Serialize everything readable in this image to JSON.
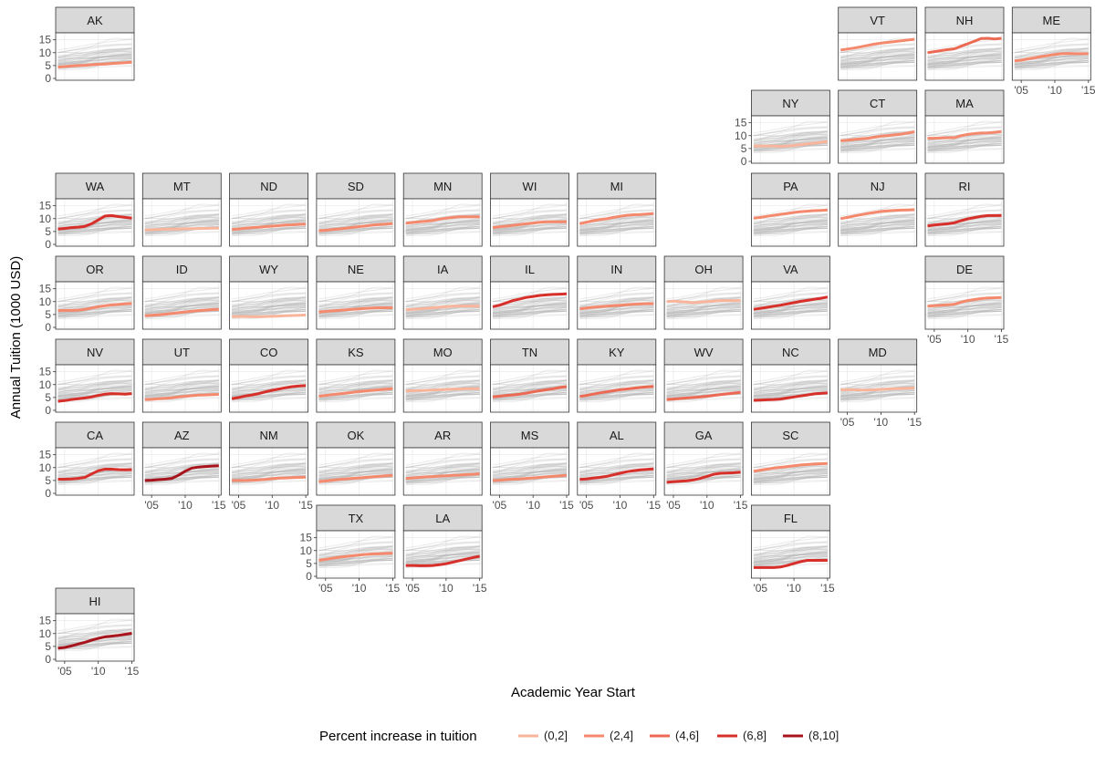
{
  "chart_data": {
    "type": "line",
    "layout": "small-multiples geofacet grid of US states",
    "xlabel": "Academic Year Start",
    "ylabel": "Annual Tuition (1000 USD)",
    "x_ticks": [
      "'05",
      "'10",
      "'15"
    ],
    "x": [
      2004,
      2005,
      2006,
      2007,
      2008,
      2009,
      2010,
      2011,
      2012,
      2013,
      2014,
      2015
    ],
    "xlim": [
      2004,
      2015
    ],
    "y_ticks": [
      0,
      5,
      10,
      15
    ],
    "ylim": [
      0,
      17
    ],
    "grid": true,
    "background_lines": "all other states drawn in light grey in every panel",
    "legend": {
      "title": "Percent increase in tuition",
      "position": "bottom",
      "categories": [
        {
          "label": "(0,2]",
          "color": "#f8b59c"
        },
        {
          "label": "(2,4]",
          "color": "#f4896e"
        },
        {
          "label": "(4,6]",
          "color": "#ec6a53"
        },
        {
          "label": "(6,8]",
          "color": "#d7302b"
        },
        {
          "label": "(8,10]",
          "color": "#a8141c"
        }
      ]
    },
    "series": [
      {
        "state": "AK",
        "row": 0,
        "col": 0,
        "cat": 1,
        "values": [
          4.4,
          4.6,
          4.8,
          5.0,
          5.1,
          5.3,
          5.5,
          5.6,
          5.8,
          5.9,
          6.1,
          6.3
        ]
      },
      {
        "state": "VT",
        "row": 0,
        "col": 9,
        "cat": 1,
        "values": [
          11.0,
          11.4,
          11.8,
          12.3,
          12.8,
          13.3,
          13.7,
          14.0,
          14.3,
          14.6,
          14.9,
          15.2
        ]
      },
      {
        "state": "NH",
        "row": 0,
        "col": 10,
        "cat": 2,
        "values": [
          10.0,
          10.4,
          10.8,
          11.2,
          11.5,
          12.5,
          13.5,
          14.5,
          15.5,
          15.6,
          15.3,
          15.6
        ]
      },
      {
        "state": "ME",
        "row": 0,
        "col": 11,
        "cat": 1,
        "values": [
          6.8,
          7.1,
          7.6,
          8.0,
          8.5,
          8.9,
          9.3,
          9.6,
          9.7,
          9.6,
          9.6,
          9.6
        ]
      },
      {
        "state": "NY",
        "row": 1,
        "col": 8,
        "cat": 0,
        "values": [
          6.0,
          6.0,
          6.0,
          6.0,
          5.8,
          6.0,
          6.2,
          6.5,
          6.8,
          7.1,
          7.4,
          7.7
        ]
      },
      {
        "state": "CT",
        "row": 1,
        "col": 9,
        "cat": 1,
        "values": [
          8.0,
          8.2,
          8.5,
          8.8,
          9.0,
          9.4,
          9.8,
          10.0,
          10.3,
          10.6,
          11.0,
          11.5
        ]
      },
      {
        "state": "MA",
        "row": 1,
        "col": 10,
        "cat": 1,
        "values": [
          9.0,
          9.0,
          9.1,
          9.2,
          9.2,
          10.0,
          10.5,
          10.8,
          11.0,
          11.1,
          11.3,
          11.6
        ]
      },
      {
        "state": "WA",
        "row": 2,
        "col": 0,
        "cat": 3,
        "values": [
          6.0,
          6.2,
          6.5,
          6.7,
          7.0,
          8.0,
          9.5,
          11.0,
          11.2,
          10.8,
          10.5,
          10.2
        ]
      },
      {
        "state": "MT",
        "row": 2,
        "col": 1,
        "cat": 0,
        "values": [
          5.6,
          5.7,
          5.8,
          5.9,
          5.9,
          6.0,
          6.1,
          6.1,
          6.2,
          6.2,
          6.3,
          6.3
        ]
      },
      {
        "state": "ND",
        "row": 2,
        "col": 2,
        "cat": 1,
        "values": [
          5.8,
          6.0,
          6.3,
          6.5,
          6.7,
          6.9,
          7.1,
          7.3,
          7.5,
          7.6,
          7.8,
          7.9
        ]
      },
      {
        "state": "SD",
        "row": 2,
        "col": 3,
        "cat": 1,
        "values": [
          5.3,
          5.5,
          5.8,
          6.0,
          6.3,
          6.6,
          6.9,
          7.2,
          7.5,
          7.7,
          7.9,
          8.1
        ]
      },
      {
        "state": "MN",
        "row": 2,
        "col": 4,
        "cat": 1,
        "values": [
          8.2,
          8.5,
          8.8,
          9.0,
          9.3,
          9.8,
          10.2,
          10.5,
          10.7,
          10.7,
          10.7,
          10.7
        ]
      },
      {
        "state": "WI",
        "row": 2,
        "col": 5,
        "cat": 1,
        "values": [
          6.5,
          6.8,
          7.1,
          7.4,
          7.7,
          8.0,
          8.3,
          8.6,
          8.8,
          8.8,
          8.8,
          8.8
        ]
      },
      {
        "state": "MI",
        "row": 2,
        "col": 6,
        "cat": 1,
        "values": [
          8.0,
          8.6,
          9.2,
          9.6,
          10.0,
          10.5,
          10.9,
          11.3,
          11.5,
          11.6,
          11.8,
          12.0
        ]
      },
      {
        "state": "PA",
        "row": 2,
        "col": 8,
        "cat": 1,
        "values": [
          10.2,
          10.5,
          10.9,
          11.3,
          11.7,
          12.0,
          12.4,
          12.7,
          12.9,
          13.1,
          13.2,
          13.4
        ]
      },
      {
        "state": "NJ",
        "row": 2,
        "col": 9,
        "cat": 1,
        "values": [
          10.0,
          10.5,
          11.0,
          11.5,
          12.0,
          12.4,
          12.8,
          13.0,
          13.2,
          13.3,
          13.4,
          13.5
        ]
      },
      {
        "state": "RI",
        "row": 2,
        "col": 10,
        "cat": 3,
        "values": [
          7.2,
          7.5,
          7.8,
          8.0,
          8.4,
          9.2,
          9.9,
          10.4,
          10.9,
          11.2,
          11.2,
          11.2
        ]
      },
      {
        "state": "OR",
        "row": 3,
        "col": 0,
        "cat": 1,
        "values": [
          6.5,
          6.6,
          6.6,
          6.7,
          7.0,
          7.5,
          8.0,
          8.4,
          8.7,
          8.9,
          9.1,
          9.3
        ]
      },
      {
        "state": "ID",
        "row": 3,
        "col": 1,
        "cat": 1,
        "values": [
          4.5,
          4.7,
          4.9,
          5.1,
          5.4,
          5.7,
          6.0,
          6.3,
          6.5,
          6.7,
          6.9,
          7.0
        ]
      },
      {
        "state": "WY",
        "row": 3,
        "col": 2,
        "cat": 0,
        "values": [
          4.2,
          4.2,
          4.2,
          4.1,
          4.1,
          4.2,
          4.3,
          4.4,
          4.5,
          4.6,
          4.7,
          4.8
        ]
      },
      {
        "state": "NE",
        "row": 3,
        "col": 3,
        "cat": 1,
        "values": [
          6.0,
          6.2,
          6.4,
          6.6,
          6.8,
          7.0,
          7.2,
          7.4,
          7.5,
          7.6,
          7.6,
          7.6
        ]
      },
      {
        "state": "IA",
        "row": 3,
        "col": 4,
        "cat": 0,
        "values": [
          6.8,
          7.0,
          7.2,
          7.4,
          7.6,
          7.8,
          8.0,
          8.2,
          8.3,
          8.3,
          8.3,
          8.2
        ]
      },
      {
        "state": "IL",
        "row": 3,
        "col": 5,
        "cat": 3,
        "values": [
          8.0,
          8.6,
          9.5,
          10.4,
          11.0,
          11.6,
          12.0,
          12.4,
          12.6,
          12.8,
          12.9,
          13.0
        ]
      },
      {
        "state": "IN",
        "row": 3,
        "col": 6,
        "cat": 1,
        "values": [
          7.2,
          7.5,
          7.8,
          8.0,
          8.2,
          8.4,
          8.6,
          8.8,
          9.0,
          9.1,
          9.2,
          9.2
        ]
      },
      {
        "state": "OH",
        "row": 3,
        "col": 7,
        "cat": 0,
        "values": [
          10.0,
          10.2,
          10.0,
          9.8,
          9.6,
          9.8,
          10.0,
          10.2,
          10.4,
          10.4,
          10.4,
          10.4
        ]
      },
      {
        "state": "VA",
        "row": 3,
        "col": 8,
        "cat": 3,
        "values": [
          7.0,
          7.4,
          7.8,
          8.2,
          8.6,
          9.1,
          9.6,
          10.1,
          10.5,
          10.9,
          11.3,
          11.8
        ]
      },
      {
        "state": "DE",
        "row": 3,
        "col": 10,
        "cat": 1,
        "values": [
          8.2,
          8.4,
          8.6,
          8.8,
          9.0,
          9.8,
          10.4,
          10.8,
          11.2,
          11.4,
          11.5,
          11.6
        ]
      },
      {
        "state": "NV",
        "row": 4,
        "col": 0,
        "cat": 3,
        "values": [
          3.5,
          3.8,
          4.2,
          4.5,
          4.8,
          5.2,
          5.8,
          6.3,
          6.5,
          6.4,
          6.3,
          6.5
        ]
      },
      {
        "state": "UT",
        "row": 4,
        "col": 1,
        "cat": 1,
        "values": [
          4.2,
          4.3,
          4.5,
          4.7,
          4.9,
          5.2,
          5.5,
          5.7,
          5.9,
          6.0,
          6.1,
          6.2
        ]
      },
      {
        "state": "CO",
        "row": 4,
        "col": 2,
        "cat": 3,
        "values": [
          4.5,
          5.0,
          5.6,
          6.0,
          6.5,
          7.2,
          7.8,
          8.3,
          8.8,
          9.2,
          9.5,
          9.6
        ]
      },
      {
        "state": "KS",
        "row": 4,
        "col": 3,
        "cat": 1,
        "values": [
          5.5,
          5.8,
          6.1,
          6.4,
          6.7,
          7.0,
          7.3,
          7.5,
          7.8,
          8.0,
          8.2,
          8.4
        ]
      },
      {
        "state": "MO",
        "row": 4,
        "col": 4,
        "cat": 0,
        "values": [
          7.5,
          7.6,
          7.7,
          7.8,
          7.9,
          8.0,
          8.1,
          8.2,
          8.3,
          8.4,
          8.4,
          8.4
        ]
      },
      {
        "state": "TN",
        "row": 4,
        "col": 5,
        "cat": 2,
        "values": [
          5.2,
          5.5,
          5.8,
          6.0,
          6.3,
          6.7,
          7.2,
          7.6,
          8.0,
          8.4,
          8.9,
          9.2
        ]
      },
      {
        "state": "KY",
        "row": 4,
        "col": 6,
        "cat": 2,
        "values": [
          5.4,
          5.8,
          6.3,
          6.8,
          7.2,
          7.6,
          8.0,
          8.3,
          8.6,
          8.9,
          9.1,
          9.3
        ]
      },
      {
        "state": "WV",
        "row": 4,
        "col": 7,
        "cat": 2,
        "values": [
          4.2,
          4.4,
          4.6,
          4.8,
          5.0,
          5.2,
          5.5,
          5.8,
          6.1,
          6.4,
          6.7,
          7.0
        ]
      },
      {
        "state": "NC",
        "row": 4,
        "col": 8,
        "cat": 3,
        "values": [
          3.9,
          4.0,
          4.1,
          4.2,
          4.4,
          4.8,
          5.2,
          5.6,
          6.0,
          6.4,
          6.6,
          6.8
        ]
      },
      {
        "state": "MD",
        "row": 4,
        "col": 9,
        "cat": 0,
        "values": [
          8.0,
          8.0,
          8.0,
          7.9,
          7.9,
          8.0,
          8.1,
          8.3,
          8.4,
          8.5,
          8.6,
          8.7
        ]
      },
      {
        "state": "CA",
        "row": 5,
        "col": 0,
        "cat": 3,
        "values": [
          5.5,
          5.5,
          5.6,
          5.8,
          6.2,
          7.5,
          8.8,
          9.4,
          9.4,
          9.2,
          9.1,
          9.2
        ]
      },
      {
        "state": "AZ",
        "row": 5,
        "col": 1,
        "cat": 4,
        "values": [
          5.0,
          5.1,
          5.3,
          5.5,
          5.8,
          7.0,
          8.6,
          9.8,
          10.2,
          10.4,
          10.6,
          10.7
        ]
      },
      {
        "state": "NM",
        "row": 5,
        "col": 2,
        "cat": 1,
        "values": [
          5.0,
          5.0,
          5.0,
          5.1,
          5.2,
          5.4,
          5.7,
          5.9,
          6.0,
          6.1,
          6.2,
          6.3
        ]
      },
      {
        "state": "OK",
        "row": 5,
        "col": 3,
        "cat": 1,
        "values": [
          4.5,
          4.8,
          5.1,
          5.4,
          5.6,
          5.8,
          6.0,
          6.2,
          6.4,
          6.6,
          6.8,
          7.0
        ]
      },
      {
        "state": "AR",
        "row": 5,
        "col": 4,
        "cat": 1,
        "values": [
          5.8,
          6.0,
          6.2,
          6.4,
          6.5,
          6.7,
          6.8,
          7.0,
          7.1,
          7.3,
          7.4,
          7.6
        ]
      },
      {
        "state": "MS",
        "row": 5,
        "col": 5,
        "cat": 1,
        "values": [
          5.0,
          5.1,
          5.3,
          5.5,
          5.6,
          5.8,
          6.0,
          6.2,
          6.4,
          6.6,
          6.8,
          7.0
        ]
      },
      {
        "state": "AL",
        "row": 5,
        "col": 6,
        "cat": 3,
        "values": [
          5.4,
          5.6,
          5.9,
          6.2,
          6.6,
          7.2,
          7.8,
          8.4,
          8.8,
          9.1,
          9.3,
          9.5
        ]
      },
      {
        "state": "GA",
        "row": 5,
        "col": 7,
        "cat": 3,
        "values": [
          4.3,
          4.5,
          4.7,
          4.9,
          5.2,
          5.8,
          6.6,
          7.4,
          7.8,
          7.9,
          8.0,
          8.2
        ]
      },
      {
        "state": "SC",
        "row": 5,
        "col": 8,
        "cat": 1,
        "values": [
          8.6,
          9.0,
          9.4,
          9.8,
          10.1,
          10.4,
          10.7,
          11.0,
          11.2,
          11.4,
          11.5,
          11.6
        ]
      },
      {
        "state": "TX",
        "row": 6,
        "col": 3,
        "cat": 1,
        "values": [
          6.2,
          6.6,
          7.0,
          7.4,
          7.7,
          8.0,
          8.3,
          8.5,
          8.7,
          8.8,
          8.9,
          9.0
        ]
      },
      {
        "state": "LA",
        "row": 6,
        "col": 4,
        "cat": 3,
        "values": [
          4.2,
          4.2,
          4.1,
          4.1,
          4.2,
          4.5,
          4.9,
          5.5,
          6.1,
          6.7,
          7.3,
          7.8
        ]
      },
      {
        "state": "FL",
        "row": 6,
        "col": 8,
        "cat": 3,
        "values": [
          3.4,
          3.4,
          3.4,
          3.4,
          3.6,
          4.2,
          5.0,
          5.7,
          6.2,
          6.2,
          6.2,
          6.2
        ]
      },
      {
        "state": "HI",
        "row": 7,
        "col": 0,
        "cat": 4,
        "values": [
          4.3,
          4.6,
          5.2,
          5.9,
          6.6,
          7.4,
          8.1,
          8.7,
          9.0,
          9.3,
          9.7,
          10.1
        ]
      }
    ],
    "y_axis_panels": [
      "AK",
      "WA",
      "OR",
      "NV",
      "CA",
      "HI",
      "NY",
      "TX"
    ],
    "x_axis_panels": [
      "ME",
      "DE",
      "MD",
      "AZ",
      "NM",
      "MS",
      "AL",
      "GA",
      "TX",
      "LA",
      "FL",
      "HI"
    ]
  }
}
